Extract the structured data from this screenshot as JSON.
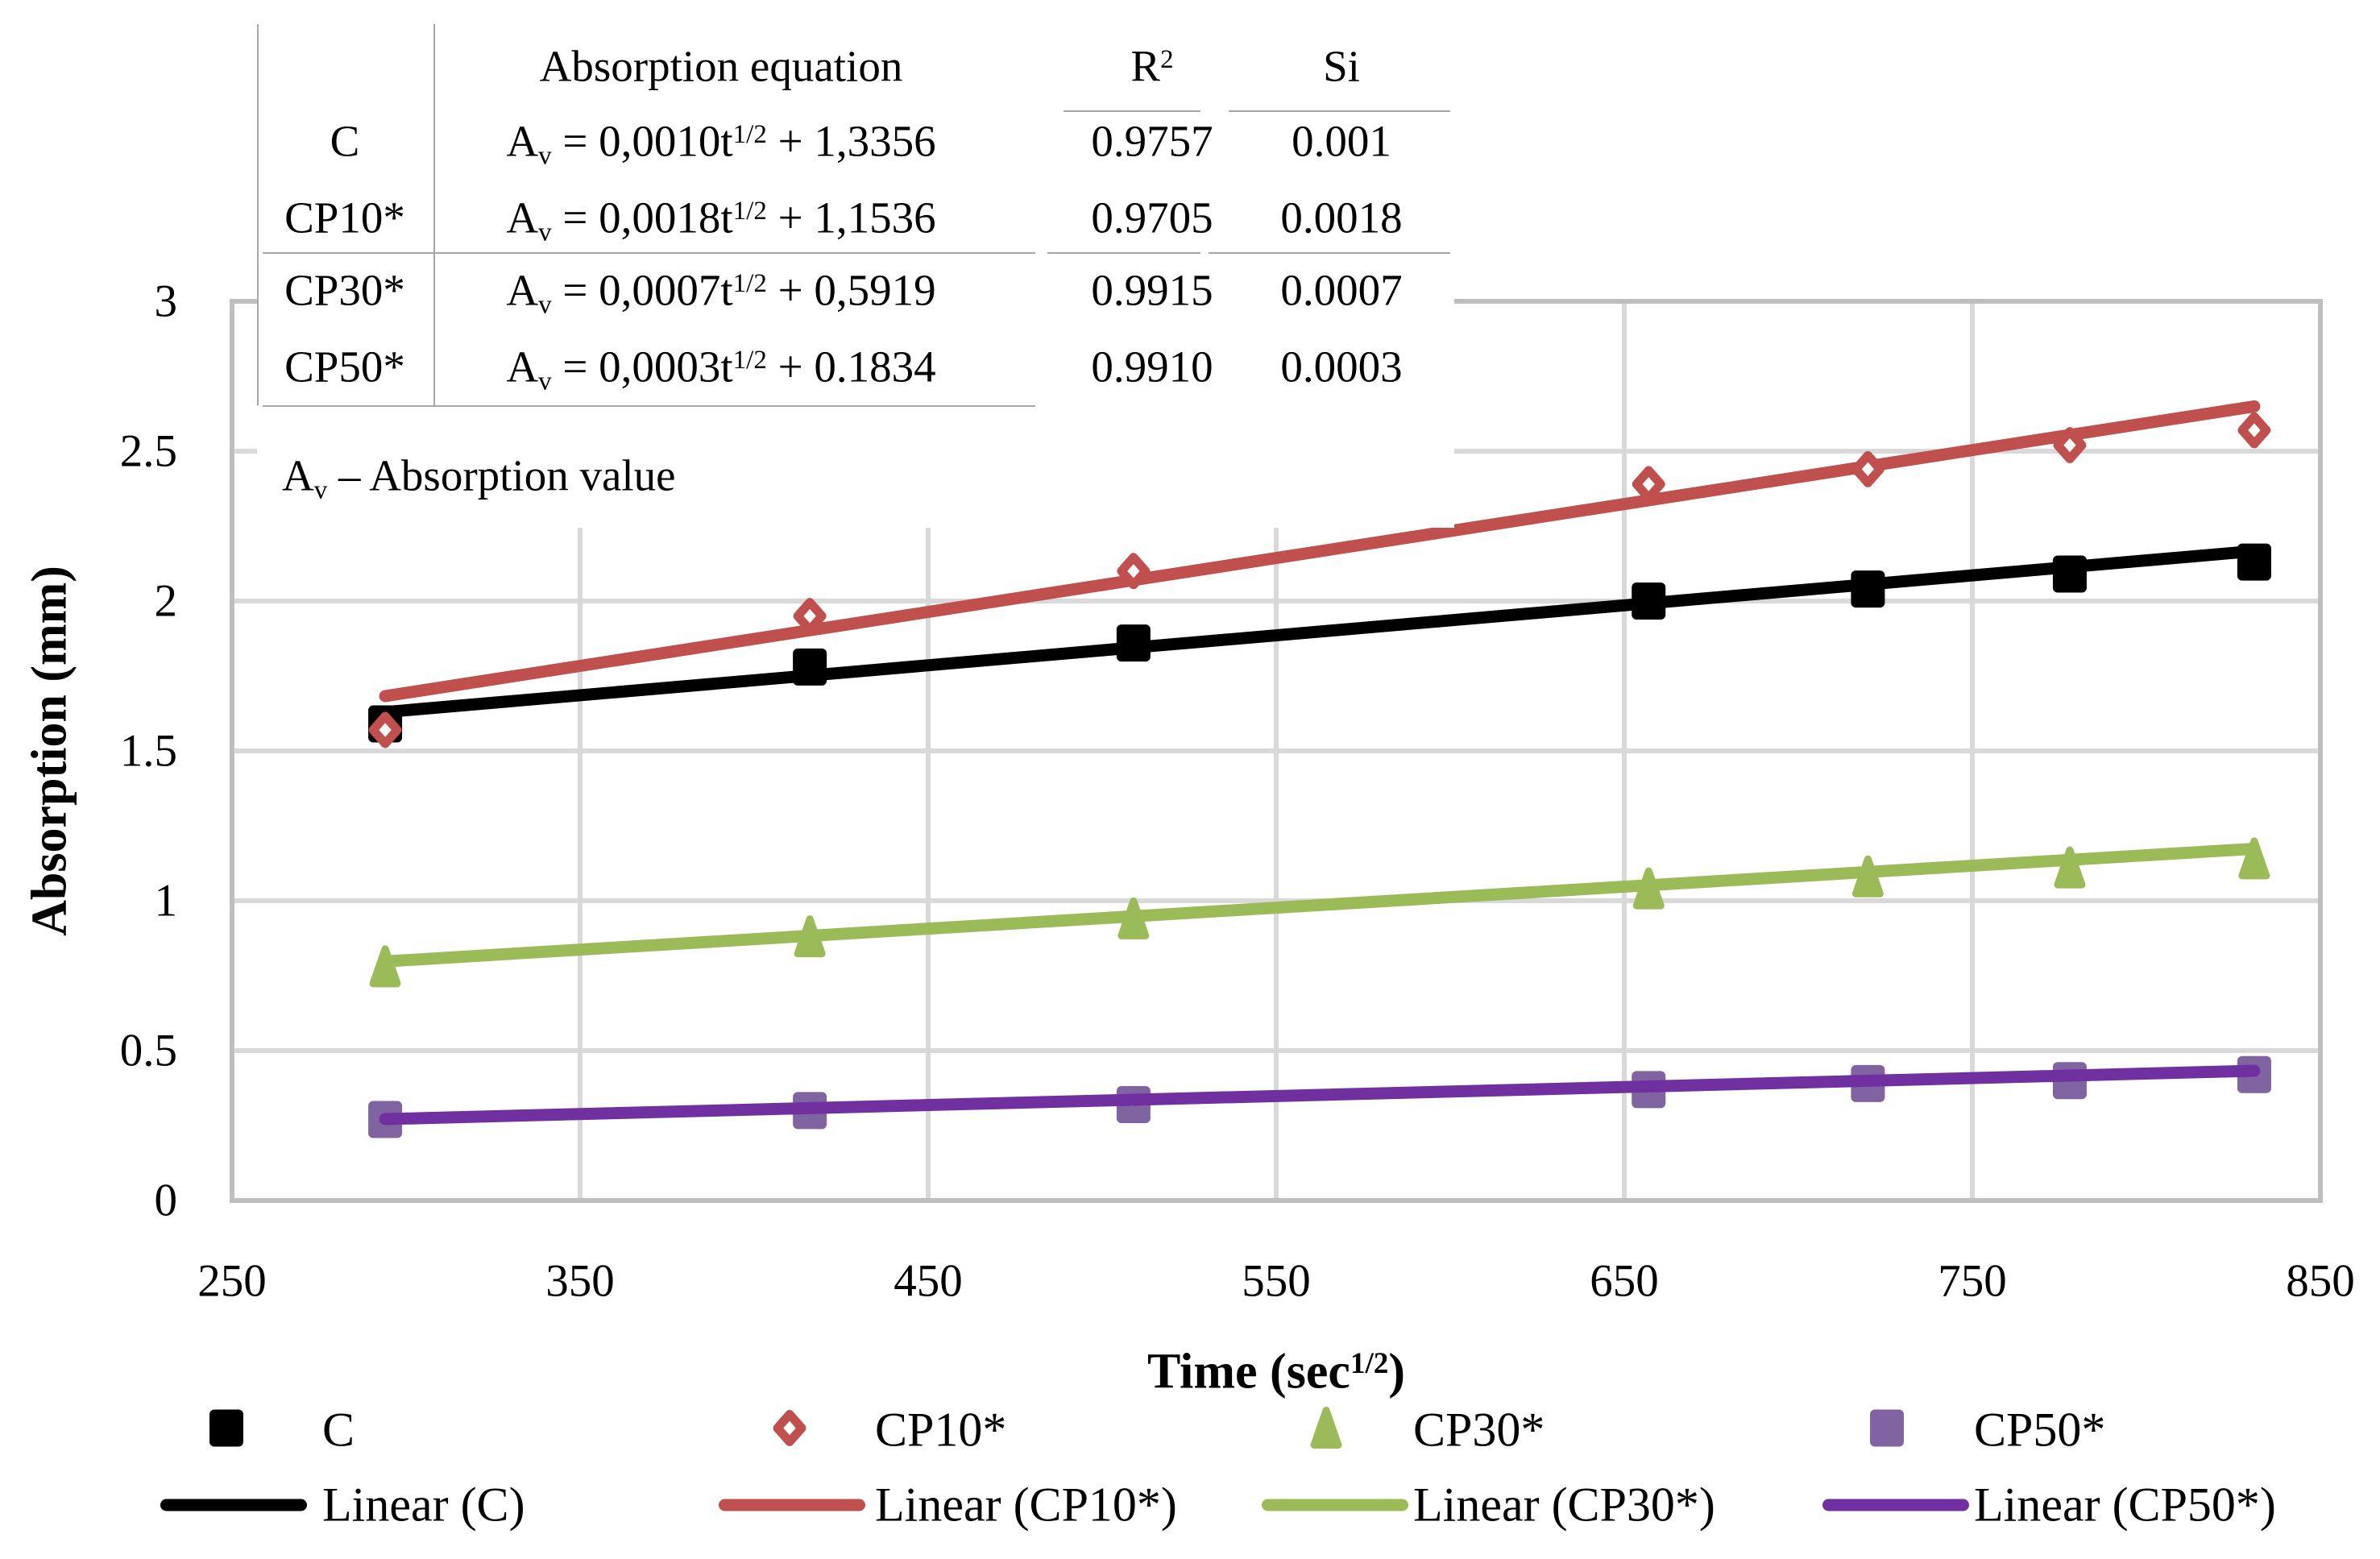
{
  "axes": {
    "y_title": "Absorption (mm)",
    "x_title_base": "Time (sec",
    "x_title_sup": "1/2",
    "x_title_close": ")",
    "y_ticks": [
      "0",
      "0.5",
      "1",
      "1.5",
      "2",
      "2.5",
      "3"
    ],
    "x_ticks": [
      "250",
      "350",
      "450",
      "550",
      "650",
      "750",
      "850"
    ]
  },
  "inset_table": {
    "header": {
      "equation": "Absorption equation",
      "r2_base": "R",
      "r2_sup": "2",
      "si": "Si"
    },
    "eq_tokens": {
      "av_base": "A",
      "av_sub": "v",
      "equals": "=",
      "t_label": "t",
      "exponent": "1/2",
      "plus": "+"
    },
    "rows": [
      {
        "name": "C",
        "coef": "0,0010",
        "intercept": "1,3356",
        "r2": "0.9757",
        "si": "0.001"
      },
      {
        "name": "CP10*",
        "coef": "0,0018",
        "intercept": "1,1536",
        "r2": "0.9705",
        "si": "0.0018"
      },
      {
        "name": "CP30*",
        "coef": "0,0007",
        "intercept": "0,5919",
        "r2": "0.9915",
        "si": "0.0007"
      },
      {
        "name": "CP50*",
        "coef": "0,0003",
        "intercept": "0.1834",
        "r2": "0.9910",
        "si": "0.0003"
      }
    ],
    "note": {
      "base": "A",
      "sub": "v",
      "rest": " – Absorption value"
    }
  },
  "legend": {
    "marker_items": [
      {
        "label": "C",
        "marker": "square",
        "color": "#000000"
      },
      {
        "label": "CP10*",
        "marker": "diamond",
        "color": "#C0504D"
      },
      {
        "label": "CP30*",
        "marker": "triangle",
        "color": "#9BBB59"
      },
      {
        "label": "CP50*",
        "marker": "square",
        "color": "#8064A2"
      }
    ],
    "line_items": [
      {
        "label": "Linear (C)",
        "color": "#000000"
      },
      {
        "label": "Linear (CP10*)",
        "color": "#C0504D"
      },
      {
        "label": "Linear (CP30*)",
        "color": "#9BBB59"
      },
      {
        "label": "Linear (CP50*)",
        "color": "#7030A0"
      }
    ]
  },
  "colors": {
    "gridline": "#D9D9D9",
    "plot_border": "#BFBFBF",
    "table_rule": "#A6A6A6"
  },
  "chart_data": {
    "type": "scatter",
    "title": "",
    "xlabel": "Time (sec^1/2)",
    "ylabel": "Absorption (mm)",
    "xlim": [
      250,
      850
    ],
    "ylim": [
      0,
      3
    ],
    "x_gridlines": [
      350,
      450,
      550,
      650,
      750,
      850
    ],
    "y_gridlines": [
      0.5,
      1,
      1.5,
      2,
      2.5
    ],
    "grid": true,
    "legend_position": "bottom",
    "series": [
      {
        "name": "C",
        "marker": "square",
        "marker_color": "#000000",
        "line_color": "#000000",
        "marker_on_top": true,
        "trend": {
          "slope": 0.001,
          "intercept": 1.3356,
          "t_start": 294,
          "t_end": 831,
          "r2": 0.9757,
          "si": 0.001
        },
        "points": [
          [
            294,
            1.59
          ],
          [
            416,
            1.78
          ],
          [
            509,
            1.86
          ],
          [
            657,
            2.0
          ],
          [
            720,
            2.04
          ],
          [
            778,
            2.09
          ],
          [
            831,
            2.13
          ]
        ]
      },
      {
        "name": "CP10*",
        "marker": "diamond",
        "marker_color": "#C0504D",
        "line_color": "#C0504D",
        "marker_on_top": true,
        "trend": {
          "slope": 0.0018,
          "intercept": 1.1536,
          "t_start": 294,
          "t_end": 831,
          "r2": 0.9705,
          "si": 0.0018
        },
        "points": [
          [
            294,
            1.57
          ],
          [
            416,
            1.95
          ],
          [
            509,
            2.1
          ],
          [
            657,
            2.39
          ],
          [
            720,
            2.44
          ],
          [
            778,
            2.52
          ],
          [
            831,
            2.57
          ]
        ]
      },
      {
        "name": "CP30*",
        "marker": "triangle",
        "marker_color": "#9BBB59",
        "line_color": "#9BBB59",
        "marker_on_top": true,
        "trend": {
          "slope": 0.0007,
          "intercept": 0.5919,
          "t_start": 294,
          "t_end": 831,
          "r2": 0.9915,
          "si": 0.0007
        },
        "points": [
          [
            294,
            0.78
          ],
          [
            416,
            0.88
          ],
          [
            509,
            0.94
          ],
          [
            657,
            1.04
          ],
          [
            720,
            1.08
          ],
          [
            778,
            1.11
          ],
          [
            831,
            1.14
          ]
        ]
      },
      {
        "name": "CP50*",
        "marker": "square",
        "marker_color": "#8064A2",
        "line_color": "#7030A0",
        "marker_on_top": false,
        "trend": {
          "slope": 0.0003,
          "intercept": 0.1834,
          "t_start": 294,
          "t_end": 831,
          "r2": 0.991,
          "si": 0.0003
        },
        "points": [
          [
            294,
            0.27
          ],
          [
            416,
            0.3
          ],
          [
            509,
            0.32
          ],
          [
            657,
            0.37
          ],
          [
            720,
            0.39
          ],
          [
            778,
            0.4
          ],
          [
            831,
            0.42
          ]
        ]
      }
    ]
  }
}
